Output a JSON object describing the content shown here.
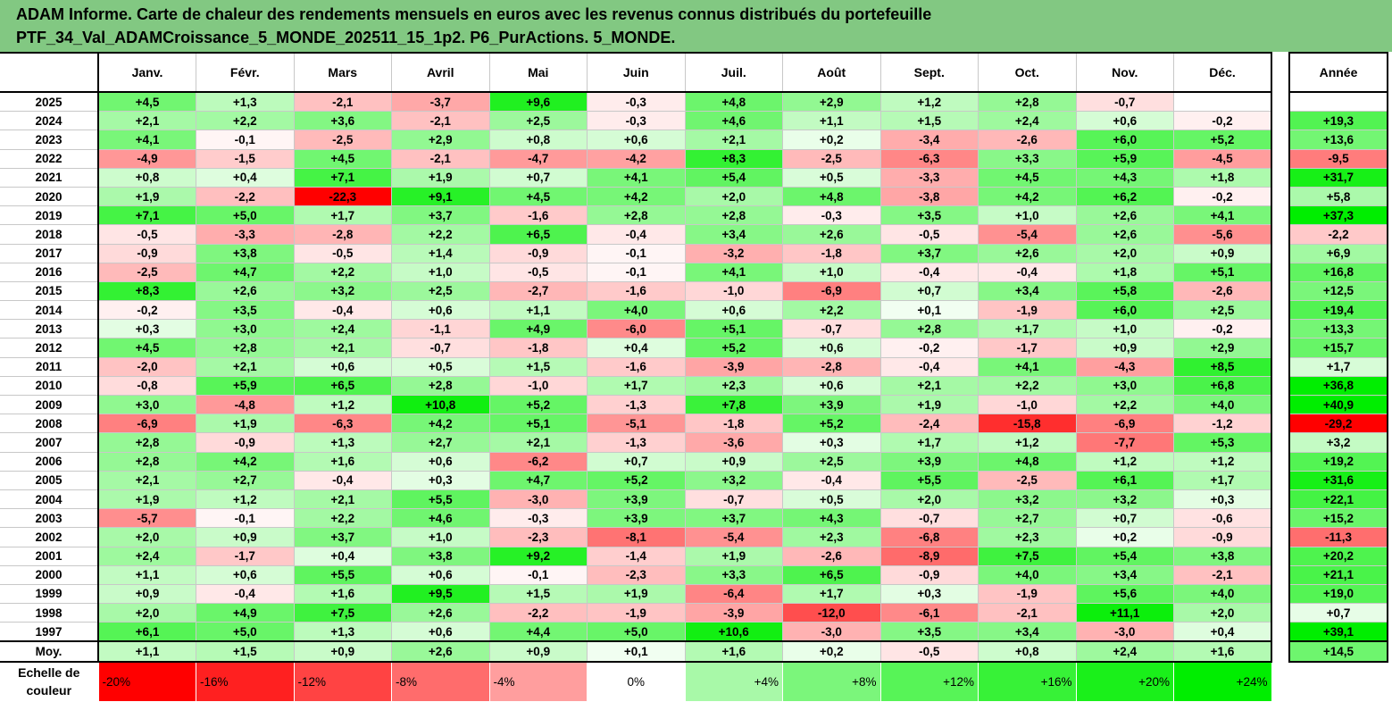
{
  "header": {
    "line1": "ADAM Informe. Carte de chaleur des rendements mensuels en euros avec les revenus connus distribués du portefeuille",
    "line2": "PTF_34_Val_ADAMCroissance_5_MONDE_202511_15_1p2. P6_PurActions. 5_MONDE."
  },
  "colors": {
    "header_bg": "#82c882",
    "negative_max": "#ff0000",
    "positive_max": "#00ee00",
    "neutral": "#ffffff"
  },
  "chart_data": {
    "type": "heatmap",
    "title": "Carte de chaleur des rendements mensuels en euros avec les revenus connus distribués du portefeuille",
    "columns": [
      "Janv.",
      "Févr.",
      "Mars",
      "Avril",
      "Mai",
      "Juin",
      "Juil.",
      "Août",
      "Sept.",
      "Oct.",
      "Nov.",
      "Déc."
    ],
    "year_column": "Année",
    "rows": [
      {
        "year": "2025",
        "values": [
          "+4,5",
          "+1,3",
          "-2,1",
          "-3,7",
          "+9,6",
          "-0,3",
          "+4,8",
          "+2,9",
          "+1,2",
          "+2,8",
          "-0,7",
          ""
        ],
        "annual": ""
      },
      {
        "year": "2024",
        "values": [
          "+2,1",
          "+2,2",
          "+3,6",
          "-2,1",
          "+2,5",
          "-0,3",
          "+4,6",
          "+1,1",
          "+1,5",
          "+2,4",
          "+0,6",
          "-0,2"
        ],
        "annual": "+19,3"
      },
      {
        "year": "2023",
        "values": [
          "+4,1",
          "-0,1",
          "-2,5",
          "+2,9",
          "+0,8",
          "+0,6",
          "+2,1",
          "+0,2",
          "-3,4",
          "-2,6",
          "+6,0",
          "+5,2"
        ],
        "annual": "+13,6"
      },
      {
        "year": "2022",
        "values": [
          "-4,9",
          "-1,5",
          "+4,5",
          "-2,1",
          "-4,7",
          "-4,2",
          "+8,3",
          "-2,5",
          "-6,3",
          "+3,3",
          "+5,9",
          "-4,5"
        ],
        "annual": "-9,5"
      },
      {
        "year": "2021",
        "values": [
          "+0,8",
          "+0,4",
          "+7,1",
          "+1,9",
          "+0,7",
          "+4,1",
          "+5,4",
          "+0,5",
          "-3,3",
          "+4,5",
          "+4,3",
          "+1,8"
        ],
        "annual": "+31,7"
      },
      {
        "year": "2020",
        "values": [
          "+1,9",
          "-2,2",
          "-22,3",
          "+9,1",
          "+4,5",
          "+4,2",
          "+2,0",
          "+4,8",
          "-3,8",
          "+4,2",
          "+6,2",
          "-0,2"
        ],
        "annual": "+5,8"
      },
      {
        "year": "2019",
        "values": [
          "+7,1",
          "+5,0",
          "+1,7",
          "+3,7",
          "-1,6",
          "+2,8",
          "+2,8",
          "-0,3",
          "+3,5",
          "+1,0",
          "+2,6",
          "+4,1"
        ],
        "annual": "+37,3"
      },
      {
        "year": "2018",
        "values": [
          "-0,5",
          "-3,3",
          "-2,8",
          "+2,2",
          "+6,5",
          "-0,4",
          "+3,4",
          "+2,6",
          "-0,5",
          "-5,4",
          "+2,6",
          "-5,6"
        ],
        "annual": "-2,2"
      },
      {
        "year": "2017",
        "values": [
          "-0,9",
          "+3,8",
          "-0,5",
          "+1,4",
          "-0,9",
          "-0,1",
          "-3,2",
          "-1,8",
          "+3,7",
          "+2,6",
          "+2,0",
          "+0,9"
        ],
        "annual": "+6,9"
      },
      {
        "year": "2016",
        "values": [
          "-2,5",
          "+4,7",
          "+2,2",
          "+1,0",
          "-0,5",
          "-0,1",
          "+4,1",
          "+1,0",
          "-0,4",
          "-0,4",
          "+1,8",
          "+5,1"
        ],
        "annual": "+16,8"
      },
      {
        "year": "2015",
        "values": [
          "+8,3",
          "+2,6",
          "+3,2",
          "+2,5",
          "-2,7",
          "-1,6",
          "-1,0",
          "-6,9",
          "+0,7",
          "+3,4",
          "+5,8",
          "-2,6"
        ],
        "annual": "+12,5"
      },
      {
        "year": "2014",
        "values": [
          "-0,2",
          "+3,5",
          "-0,4",
          "+0,6",
          "+1,1",
          "+4,0",
          "+0,6",
          "+2,2",
          "+0,1",
          "-1,9",
          "+6,0",
          "+2,5"
        ],
        "annual": "+19,4"
      },
      {
        "year": "2013",
        "values": [
          "+0,3",
          "+3,0",
          "+2,4",
          "-1,1",
          "+4,9",
          "-6,0",
          "+5,1",
          "-0,7",
          "+2,8",
          "+1,7",
          "+1,0",
          "-0,2"
        ],
        "annual": "+13,3"
      },
      {
        "year": "2012",
        "values": [
          "+4,5",
          "+2,8",
          "+2,1",
          "-0,7",
          "-1,8",
          "+0,4",
          "+5,2",
          "+0,6",
          "-0,2",
          "-1,7",
          "+0,9",
          "+2,9"
        ],
        "annual": "+15,7"
      },
      {
        "year": "2011",
        "values": [
          "-2,0",
          "+2,1",
          "+0,6",
          "+0,5",
          "+1,5",
          "-1,6",
          "-3,9",
          "-2,8",
          "-0,4",
          "+4,1",
          "-4,3",
          "+8,5"
        ],
        "annual": "+1,7"
      },
      {
        "year": "2010",
        "values": [
          "-0,8",
          "+5,9",
          "+6,5",
          "+2,8",
          "-1,0",
          "+1,7",
          "+2,3",
          "+0,6",
          "+2,1",
          "+2,2",
          "+3,0",
          "+6,8"
        ],
        "annual": "+36,8"
      },
      {
        "year": "2009",
        "values": [
          "+3,0",
          "-4,8",
          "+1,2",
          "+10,8",
          "+5,2",
          "-1,3",
          "+7,8",
          "+3,9",
          "+1,9",
          "-1,0",
          "+2,2",
          "+4,0"
        ],
        "annual": "+40,9"
      },
      {
        "year": "2008",
        "values": [
          "-6,9",
          "+1,9",
          "-6,3",
          "+4,2",
          "+5,1",
          "-5,1",
          "-1,8",
          "+5,2",
          "-2,4",
          "-15,8",
          "-6,9",
          "-1,2"
        ],
        "annual": "-29,2"
      },
      {
        "year": "2007",
        "values": [
          "+2,8",
          "-0,9",
          "+1,3",
          "+2,7",
          "+2,1",
          "-1,3",
          "-3,6",
          "+0,3",
          "+1,7",
          "+1,2",
          "-7,7",
          "+5,3"
        ],
        "annual": "+3,2"
      },
      {
        "year": "2006",
        "values": [
          "+2,8",
          "+4,2",
          "+1,6",
          "+0,6",
          "-6,2",
          "+0,7",
          "+0,9",
          "+2,5",
          "+3,9",
          "+4,8",
          "+1,2",
          "+1,2"
        ],
        "annual": "+19,2"
      },
      {
        "year": "2005",
        "values": [
          "+2,1",
          "+2,7",
          "-0,4",
          "+0,3",
          "+4,7",
          "+5,2",
          "+3,2",
          "-0,4",
          "+5,5",
          "-2,5",
          "+6,1",
          "+1,7"
        ],
        "annual": "+31,6"
      },
      {
        "year": "2004",
        "values": [
          "+1,9",
          "+1,2",
          "+2,1",
          "+5,5",
          "-3,0",
          "+3,9",
          "-0,7",
          "+0,5",
          "+2,0",
          "+3,2",
          "+3,2",
          "+0,3"
        ],
        "annual": "+22,1"
      },
      {
        "year": "2003",
        "values": [
          "-5,7",
          "-0,1",
          "+2,2",
          "+4,6",
          "-0,3",
          "+3,9",
          "+3,7",
          "+4,3",
          "-0,7",
          "+2,7",
          "+0,7",
          "-0,6"
        ],
        "annual": "+15,2"
      },
      {
        "year": "2002",
        "values": [
          "+2,0",
          "+0,9",
          "+3,7",
          "+1,0",
          "-2,3",
          "-8,1",
          "-5,4",
          "+2,3",
          "-6,8",
          "+2,3",
          "+0,2",
          "-0,9"
        ],
        "annual": "-11,3"
      },
      {
        "year": "2001",
        "values": [
          "+2,4",
          "-1,7",
          "+0,4",
          "+3,8",
          "+9,2",
          "-1,4",
          "+1,9",
          "-2,6",
          "-8,9",
          "+7,5",
          "+5,4",
          "+3,8"
        ],
        "annual": "+20,2"
      },
      {
        "year": "2000",
        "values": [
          "+1,1",
          "+0,6",
          "+5,5",
          "+0,6",
          "-0,1",
          "-2,3",
          "+3,3",
          "+6,5",
          "-0,9",
          "+4,0",
          "+3,4",
          "-2,1"
        ],
        "annual": "+21,1"
      },
      {
        "year": "1999",
        "values": [
          "+0,9",
          "-0,4",
          "+1,6",
          "+9,5",
          "+1,5",
          "+1,9",
          "-6,4",
          "+1,7",
          "+0,3",
          "-1,9",
          "+5,6",
          "+4,0"
        ],
        "annual": "+19,0"
      },
      {
        "year": "1998",
        "values": [
          "+2,0",
          "+4,9",
          "+7,5",
          "+2,6",
          "-2,2",
          "-1,9",
          "-3,9",
          "-12,0",
          "-6,1",
          "-2,1",
          "+11,1",
          "+2,0"
        ],
        "annual": "+0,7"
      },
      {
        "year": "1997",
        "values": [
          "+6,1",
          "+5,0",
          "+1,3",
          "+0,6",
          "+4,4",
          "+5,0",
          "+10,6",
          "-3,0",
          "+3,5",
          "+3,4",
          "-3,0",
          "+0,4"
        ],
        "annual": "+39,1"
      }
    ],
    "average": {
      "label": "Moy.",
      "values": [
        "+1,1",
        "+1,5",
        "+0,9",
        "+2,6",
        "+0,9",
        "+0,1",
        "+1,6",
        "+0,2",
        "-0,5",
        "+0,8",
        "+2,4",
        "+1,6"
      ],
      "annual": "+14,5"
    },
    "scale": {
      "label_line1": "Echelle de",
      "label_line2": "couleur",
      "ticks": [
        {
          "label": "-20%",
          "value": -20
        },
        {
          "label": "-16%",
          "value": -16
        },
        {
          "label": "-12%",
          "value": -12
        },
        {
          "label": "-8%",
          "value": -8
        },
        {
          "label": "-4%",
          "value": -4
        },
        {
          "label": "0%",
          "value": 0
        },
        {
          "label": "+4%",
          "value": 4
        },
        {
          "label": "+8%",
          "value": 8
        },
        {
          "label": "+12%",
          "value": 12
        },
        {
          "label": "+16%",
          "value": 16
        },
        {
          "label": "+20%",
          "value": 20
        },
        {
          "label": "+24%",
          "value": 24
        }
      ]
    }
  }
}
